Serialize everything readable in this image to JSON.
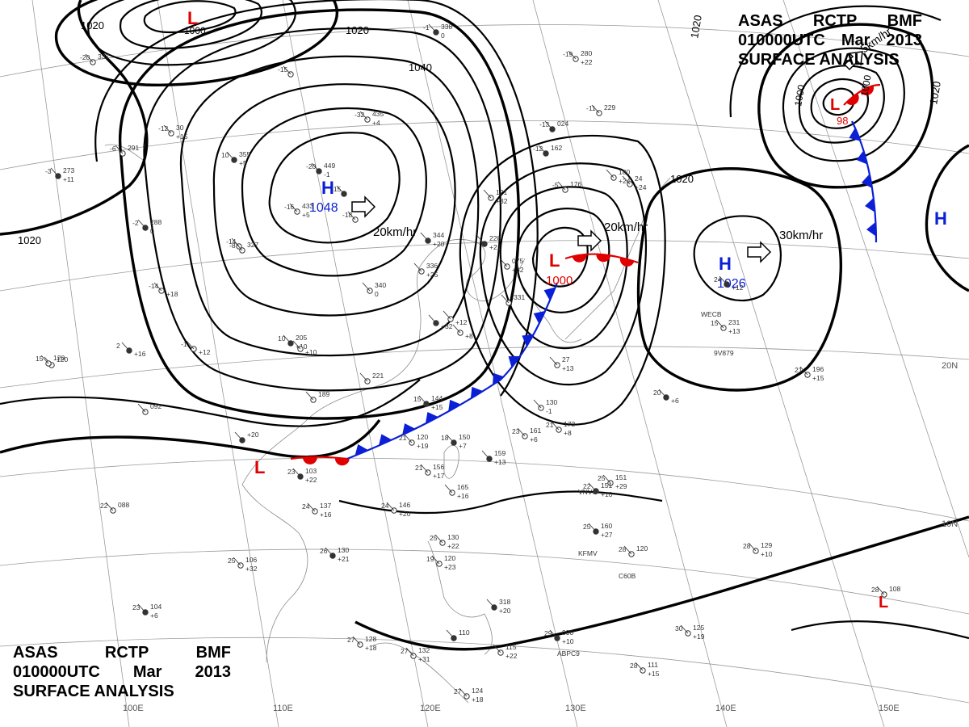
{
  "header": {
    "line1": [
      "ASAS",
      "RCTP",
      "BMF"
    ],
    "line2": [
      "010000UTC",
      "Mar",
      "2013"
    ],
    "line3": "SURFACE ANALYSIS"
  },
  "colors": {
    "low": "#e00000",
    "high": "#0a1fd6",
    "cold_front": "#0a1fd6",
    "warm_front": "#e00000",
    "isobar": "#000000",
    "grid": "#9a9a9a"
  },
  "pressure_centers": [
    {
      "type": "L",
      "label": "L",
      "value": "1000",
      "place": "top"
    },
    {
      "type": "H",
      "label": "H",
      "value": "1048",
      "place": "mongolia"
    },
    {
      "type": "L",
      "label": "L",
      "value": "1000",
      "place": "yellow-sea"
    },
    {
      "type": "H",
      "label": "H",
      "value": "1026",
      "place": "pacific"
    },
    {
      "type": "L",
      "label": "L",
      "value": "98",
      "place": "northeast"
    },
    {
      "type": "L",
      "label": "L",
      "value": "",
      "place": "southwest"
    },
    {
      "type": "L",
      "label": "L",
      "value": "",
      "place": "southeast"
    },
    {
      "type": "H",
      "label": "H",
      "value": "",
      "place": "east-edge"
    }
  ],
  "movements": [
    {
      "text": "20km/hr",
      "place": "h1048"
    },
    {
      "text": "20km/hr",
      "place": "l1000"
    },
    {
      "text": "30km/hr",
      "place": "h1026"
    },
    {
      "text": "5km/hr",
      "place": "l98"
    }
  ],
  "isobar_labels": [
    "1020",
    "1000",
    "1020",
    "1040",
    "1020",
    "1020",
    "1000",
    "1020",
    "1020",
    "1000"
  ],
  "grid_labels": {
    "longitudes": [
      "100E",
      "110E",
      "120E",
      "130E",
      "140E",
      "150E"
    ],
    "latitudes": [
      "20N",
      "10N"
    ]
  },
  "ships": [
    "WECB",
    "9V879",
    "KFMV",
    "C60B",
    "ABPC9",
    "VNVG"
  ],
  "station_plots": [
    {
      "tl": "-20",
      "tr": "449",
      "br": "-1"
    },
    {
      "tl": "-16",
      "tr": "433",
      "br": "+5"
    },
    {
      "tl": "-18",
      "tr": "",
      "br": ""
    },
    {
      "tl": "10",
      "tr": "355",
      "br": "+5"
    },
    {
      "tl": "-32",
      "tr": "435",
      "br": "+4"
    },
    {
      "tl": "-14",
      "tr": "",
      "br": ""
    },
    {
      "tl": "-12",
      "tr": "162",
      "br": ""
    },
    {
      "tl": "-5",
      "tr": "176",
      "br": ""
    },
    {
      "tl": "",
      "tr": "121",
      "br": "+32"
    },
    {
      "tl": "",
      "tr": "344",
      "br": "+20"
    },
    {
      "tl": "",
      "tr": "336",
      "br": "+25"
    },
    {
      "tl": "",
      "tr": "340",
      "br": "0"
    },
    {
      "tl": "",
      "tr": "228",
      "br": "+21"
    },
    {
      "tl": "",
      "tr": "075",
      "br": "+32"
    },
    {
      "tl": "",
      "tr": "331",
      "br": ""
    },
    {
      "tl": "10",
      "tr": "205",
      "br": "+10"
    },
    {
      "tl": "",
      "tr": "189",
      "br": ""
    },
    {
      "tl": "",
      "tr": "221",
      "br": ""
    },
    {
      "tl": "15",
      "tr": "144",
      "br": "+15"
    },
    {
      "tl": "",
      "tr": "130",
      "br": "-1"
    },
    {
      "tl": "21",
      "tr": "120",
      "br": "+19"
    },
    {
      "tl": "18",
      "tr": "150",
      "br": "+7"
    },
    {
      "tl": "23",
      "tr": "161",
      "br": "+6"
    },
    {
      "tl": "21",
      "tr": "173",
      "br": "+8"
    },
    {
      "tl": "",
      "tr": "159",
      "br": "+13"
    },
    {
      "tl": "21",
      "tr": "156",
      "br": "+17"
    },
    {
      "tl": "",
      "tr": "165",
      "br": "+16"
    },
    {
      "tl": "23",
      "tr": "103",
      "br": "+22"
    },
    {
      "tl": "24",
      "tr": "146",
      "br": "+20"
    },
    {
      "tl": "24",
      "tr": "137",
      "br": "+16"
    },
    {
      "tl": "26",
      "tr": "130",
      "br": "+21"
    },
    {
      "tl": "25",
      "tr": "106",
      "br": "+32"
    },
    {
      "tl": "22",
      "tr": "088",
      "br": ""
    },
    {
      "tl": "23",
      "tr": "104",
      "br": "+6"
    },
    {
      "tl": "",
      "tr": "092",
      "br": ""
    },
    {
      "tl": "",
      "tr": "120",
      "br": ""
    },
    {
      "tl": "",
      "tr": "+20",
      "br": ""
    },
    {
      "tl": "25",
      "tr": "130",
      "br": "+22"
    },
    {
      "tl": "19",
      "tr": "120",
      "br": "+23"
    },
    {
      "tl": "",
      "tr": "318",
      "br": "+20"
    },
    {
      "tl": "27",
      "tr": "128",
      "br": "+18"
    },
    {
      "tl": "27",
      "tr": "132",
      "br": "+31"
    },
    {
      "tl": "",
      "tr": "110",
      "br": ""
    },
    {
      "tl": "27",
      "tr": "124",
      "br": "+18"
    },
    {
      "tl": "",
      "tr": "115",
      "br": "+22"
    },
    {
      "tl": "29",
      "tr": "090",
      "br": "+10"
    },
    {
      "tl": "28",
      "tr": "111",
      "br": "+15"
    },
    {
      "tl": "30",
      "tr": "125",
      "br": "+19"
    },
    {
      "tl": "25",
      "tr": "160",
      "br": "+27"
    },
    {
      "tl": "28",
      "tr": "120",
      "br": ""
    },
    {
      "tl": "25",
      "tr": "151",
      "br": "+29"
    },
    {
      "tl": "22",
      "tr": "151",
      "br": "+10"
    },
    {
      "tl": "28",
      "tr": "129",
      "br": "+10"
    },
    {
      "tl": "28",
      "tr": "108",
      "br": ""
    },
    {
      "tl": "20",
      "tr": "",
      "br": "+6"
    },
    {
      "tl": "21",
      "tr": "196",
      "br": "+15"
    },
    {
      "tl": "15",
      "tr": "231",
      "br": "+13"
    },
    {
      "tl": "24",
      "tr": "",
      "br": "+12"
    },
    {
      "tl": "",
      "tr": "180",
      "br": "+24"
    },
    {
      "tl": "",
      "tr": "24",
      "br": "+24"
    },
    {
      "tl": "-1",
      "tr": "338",
      "br": "0"
    },
    {
      "tl": "-19",
      "tr": "280",
      "br": "+22"
    },
    {
      "tl": "-11",
      "tr": "229",
      "br": ""
    },
    {
      "tl": "-13",
      "tr": "024",
      "br": ""
    },
    {
      "tl": "-20",
      "tr": "337",
      "br": ""
    },
    {
      "tl": "-6",
      "tr": "291",
      "br": ""
    },
    {
      "tl": "-3",
      "tr": "273",
      "br": "+11"
    },
    {
      "tl": "-12",
      "tr": "30",
      "br": "+15"
    },
    {
      "tl": "-15",
      "tr": "",
      "br": ""
    },
    {
      "tl": "-2",
      "tr": "288",
      "br": "0"
    },
    {
      "tl": "-8",
      "tr": "327",
      "br": ""
    },
    {
      "tl": "-14",
      "tr": "",
      "br": "+18"
    },
    {
      "tl": "2",
      "tr": "",
      "br": "+16"
    },
    {
      "tl": "-1",
      "tr": "",
      "br": "+12"
    },
    {
      "tl": "15",
      "tr": "120",
      "br": ""
    },
    {
      "tl": "-15",
      "tr": "",
      "br": ""
    },
    {
      "tl": "",
      "tr": "27",
      "br": "+13"
    },
    {
      "tl": "",
      "tr": "",
      "br": "+12"
    },
    {
      "tl": "",
      "tr": "",
      "br": "+32"
    },
    {
      "tl": "",
      "tr": "",
      "br": "+8"
    },
    {
      "tl": "",
      "tr": "",
      "br": "+10"
    }
  ]
}
